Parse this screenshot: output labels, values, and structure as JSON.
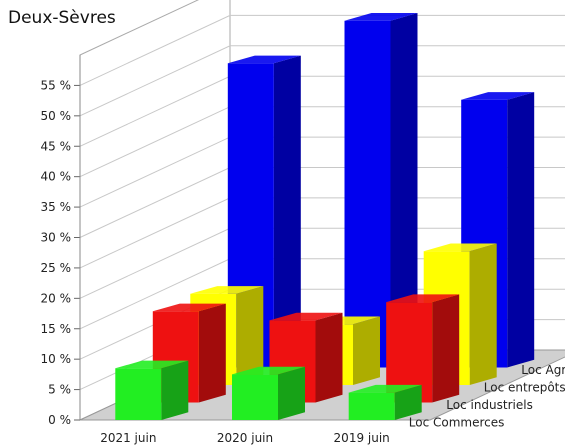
{
  "title": "Deux-Sèvres",
  "chart_data": {
    "type": "bar",
    "title": "Deux-Sèvres",
    "categories": [
      "2021 juin",
      "2020 juin",
      "2019 juin"
    ],
    "series": [
      {
        "name": "Loc Commerces",
        "values": [
          8.5,
          7.5,
          4.5
        ],
        "color": "#22ee22"
      },
      {
        "name": "Loc industriels",
        "values": [
          15,
          13.5,
          16.5
        ],
        "color": "#ee1111"
      },
      {
        "name": "Loc entrepôts",
        "values": [
          15,
          10,
          22
        ],
        "color": "#ffff00"
      },
      {
        "name": "Loc Agricoles",
        "values": [
          50,
          57,
          44
        ],
        "color": "#0000ee"
      }
    ],
    "y_ticks": [
      "0 %",
      "5 %",
      "10 %",
      "15 %",
      "20 %",
      "25 %",
      "30 %",
      "35 %",
      "40 %",
      "45 %",
      "50 %",
      "55 %"
    ],
    "ylim": [
      0,
      60
    ],
    "grid": true
  }
}
